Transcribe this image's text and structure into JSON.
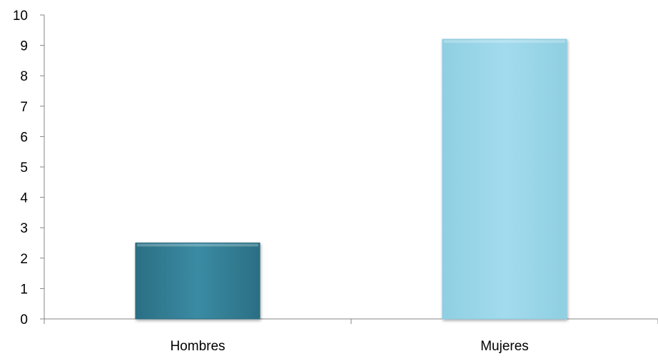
{
  "chart_data": {
    "type": "bar",
    "title": "",
    "xlabel": "",
    "ylabel": "",
    "categories": [
      "Hombres",
      "Mujeres"
    ],
    "values": [
      2.5,
      9.2
    ],
    "ylim": [
      0,
      10
    ],
    "yticks": [
      "0",
      "1",
      "2",
      "3",
      "4",
      "5",
      "6",
      "7",
      "8",
      "9",
      "10"
    ],
    "grid": false,
    "legend": "none",
    "colors": [
      "#3a8ba3",
      "#a2dbed"
    ]
  }
}
